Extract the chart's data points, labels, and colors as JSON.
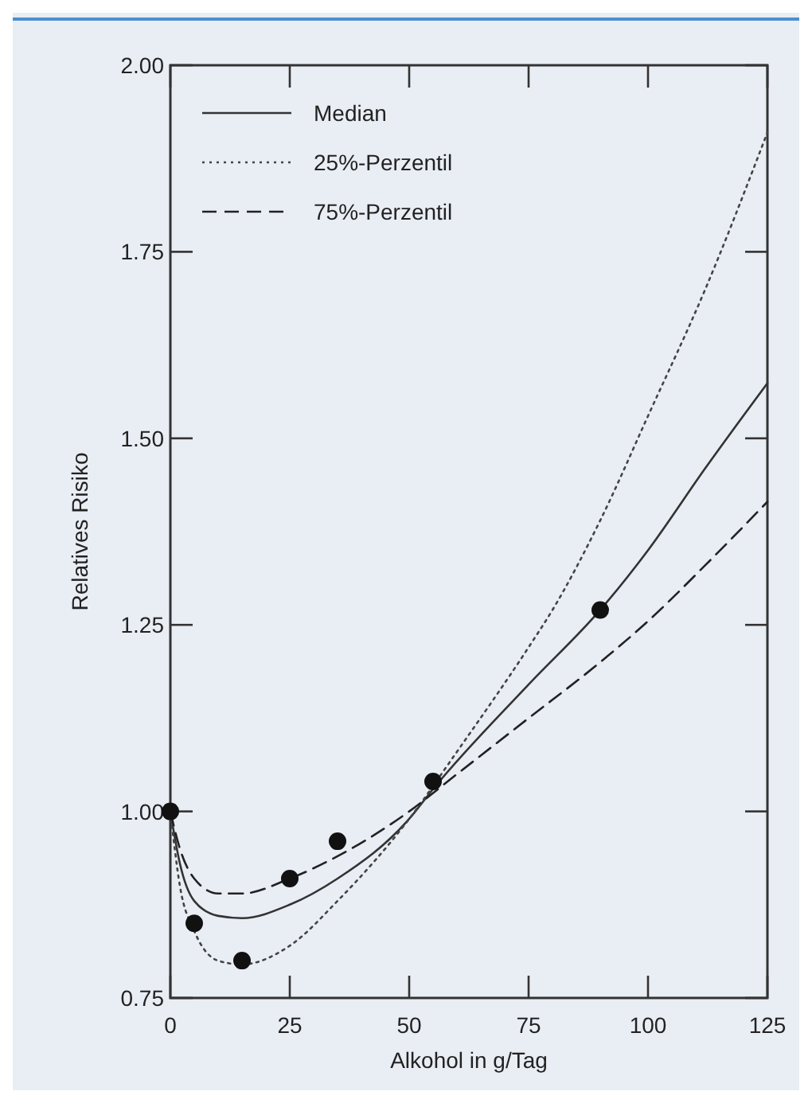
{
  "chart_data": {
    "type": "line",
    "xlabel": "Alkohol in g/Tag",
    "ylabel": "Relatives Risiko",
    "xlim": [
      0,
      125
    ],
    "ylim": [
      0.75,
      2.0
    ],
    "xticks": [
      0,
      25,
      50,
      75,
      100,
      125
    ],
    "yticks": [
      {
        "value": 0.75,
        "label": "0.75"
      },
      {
        "value": 1.0,
        "label": "1.00"
      },
      {
        "value": 1.25,
        "label": "1.25"
      },
      {
        "value": 1.5,
        "label": "1.50"
      },
      {
        "value": 1.75,
        "label": "1.75"
      },
      {
        "value": 2.0,
        "label": "2.00"
      }
    ],
    "grid": false,
    "legend": "top left",
    "series": [
      {
        "name": "Median",
        "color": "#333333",
        "line_style": "solid",
        "marker": "none",
        "x": [
          0,
          2,
          5,
          10,
          15,
          25,
          35,
          50,
          55,
          75,
          90,
          100,
          112,
          125
        ],
        "values": [
          1.0,
          0.93,
          0.88,
          0.86,
          0.857,
          0.875,
          0.91,
          0.99,
          1.03,
          1.17,
          1.27,
          1.35,
          1.46,
          1.574
        ]
      },
      {
        "name": "25%-Perzentil",
        "color": "#444444",
        "line_style": "dotted",
        "marker": "none",
        "x": [
          0,
          2,
          5,
          10,
          15,
          25,
          35,
          50,
          60,
          75,
          80,
          90,
          100,
          112,
          125
        ],
        "values": [
          1.0,
          0.9,
          0.84,
          0.8,
          0.795,
          0.82,
          0.88,
          0.99,
          1.08,
          1.22,
          1.27,
          1.39,
          1.53,
          1.7,
          1.91
        ]
      },
      {
        "name": "75%-Perzentil",
        "color": "#222222",
        "line_style": "dashed",
        "marker": "none",
        "x": [
          0,
          2,
          5,
          10,
          15,
          25,
          35,
          50,
          60,
          75,
          90,
          100,
          112,
          125
        ],
        "values": [
          1.0,
          0.95,
          0.91,
          0.89,
          0.89,
          0.91,
          0.94,
          1.0,
          1.05,
          1.125,
          1.2,
          1.255,
          1.33,
          1.415
        ]
      },
      {
        "type": "scatter",
        "color": "#111111",
        "marker": "circle",
        "x": [
          0,
          5,
          15,
          25,
          35,
          55,
          90
        ],
        "values": [
          1.0,
          0.85,
          0.8,
          0.91,
          0.96,
          1.04,
          1.27
        ]
      }
    ]
  }
}
